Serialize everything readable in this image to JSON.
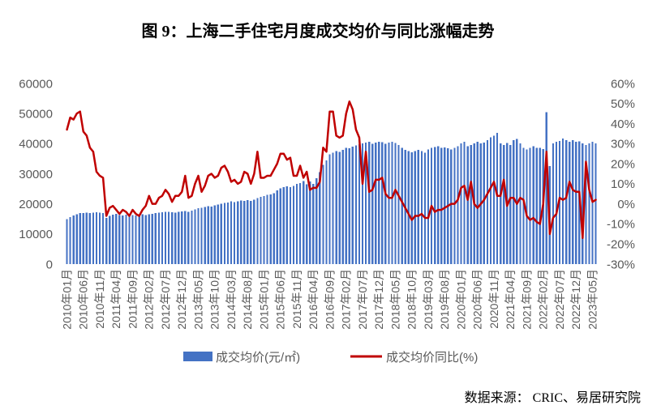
{
  "chart_data": {
    "type": "bar",
    "title": "图 9：上海二手住宅月度成交均价与同比涨幅走势",
    "categories": [
      "2010年01月",
      "2010年02月",
      "2010年03月",
      "2010年04月",
      "2010年05月",
      "2010年06月",
      "2010年07月",
      "2010年08月",
      "2010年09月",
      "2010年10月",
      "2010年11月",
      "2010年12月",
      "2011年01月",
      "2011年02月",
      "2011年03月",
      "2011年04月",
      "2011年05月",
      "2011年06月",
      "2011年07月",
      "2011年08月",
      "2011年09月",
      "2011年10月",
      "2011年11月",
      "2011年12月",
      "2012年01月",
      "2012年02月",
      "2012年03月",
      "2012年04月",
      "2012年05月",
      "2012年06月",
      "2012年07月",
      "2012年08月",
      "2012年09月",
      "2012年10月",
      "2012年11月",
      "2012年12月",
      "2013年01月",
      "2013年02月",
      "2013年03月",
      "2013年04月",
      "2013年05月",
      "2013年06月",
      "2013年07月",
      "2013年08月",
      "2013年09月",
      "2013年10月",
      "2013年11月",
      "2013年12月",
      "2014年01月",
      "2014年02月",
      "2014年03月",
      "2014年04月",
      "2014年05月",
      "2014年06月",
      "2014年07月",
      "2014年08月",
      "2014年09月",
      "2014年10月",
      "2014年11月",
      "2014年12月",
      "2015年01月",
      "2015年02月",
      "2015年03月",
      "2015年04月",
      "2015年05月",
      "2015年06月",
      "2015年07月",
      "2015年08月",
      "2015年09月",
      "2015年10月",
      "2015年11月",
      "2015年12月",
      "2016年01月",
      "2016年02月",
      "2016年03月",
      "2016年04月",
      "2016年05月",
      "2016年06月",
      "2016年07月",
      "2016年08月",
      "2016年09月",
      "2016年10月",
      "2016年11月",
      "2016年12月",
      "2017年01月",
      "2017年02月",
      "2017年03月",
      "2017年04月",
      "2017年05月",
      "2017年06月",
      "2017年07月",
      "2017年08月",
      "2017年09月",
      "2017年10月",
      "2017年11月",
      "2017年12月",
      "2018年01月",
      "2018年02月",
      "2018年03月",
      "2018年04月",
      "2018年05月",
      "2018年06月",
      "2018年07月",
      "2018年08月",
      "2018年09月",
      "2018年10月",
      "2018年11月",
      "2018年12月",
      "2019年01月",
      "2019年02月",
      "2019年03月",
      "2019年04月",
      "2019年05月",
      "2019年06月",
      "2019年07月",
      "2019年08月",
      "2019年09月",
      "2019年10月",
      "2019年11月",
      "2019年12月",
      "2020年01月",
      "2020年02月",
      "2020年03月",
      "2020年04月",
      "2020年05月",
      "2020年06月",
      "2020年07月",
      "2020年08月",
      "2020年09月",
      "2020年10月",
      "2020年11月",
      "2020年12月",
      "2021年01月",
      "2021年02月",
      "2021年03月",
      "2021年04月",
      "2021年05月",
      "2021年06月",
      "2021年07月",
      "2021年08月",
      "2021年09月",
      "2021年10月",
      "2021年11月",
      "2021年12月",
      "2022年01月",
      "2022年02月",
      "2022年03月",
      "2022年04月",
      "2022年05月",
      "2022年06月",
      "2022年07月",
      "2022年08月",
      "2022年09月",
      "2022年10月",
      "2022年11月",
      "2022年12月",
      "2023年01月",
      "2023年02月",
      "2023年03月",
      "2023年04月",
      "2023年05月",
      "2023年06月"
    ],
    "series": [
      {
        "name": "成交均价(元/㎡)",
        "type": "bar",
        "y_axis": "left",
        "color": "#4472C4",
        "values": [
          15000,
          15600,
          16200,
          16600,
          16900,
          17000,
          17100,
          17000,
          17100,
          17200,
          17100,
          17000,
          15300,
          16000,
          16400,
          16700,
          16300,
          16100,
          16400,
          16600,
          16300,
          16100,
          16400,
          16600,
          16300,
          16500,
          16700,
          16900,
          17100,
          17200,
          17300,
          17400,
          17200,
          17100,
          17300,
          17500,
          17600,
          17300,
          17800,
          18200,
          18500,
          18700,
          19000,
          19200,
          19100,
          19500,
          19800,
          20100,
          20300,
          20500,
          20800,
          20600,
          20900,
          21100,
          21000,
          21200,
          21000,
          21400,
          21900,
          22300,
          22600,
          23000,
          23200,
          23600,
          24500,
          25100,
          25600,
          25800,
          25600,
          25900,
          26600,
          26900,
          27600,
          26500,
          27400,
          26600,
          28500,
          30500,
          33000,
          34500,
          36500,
          37000,
          37500,
          37200,
          38000,
          38600,
          38500,
          39000,
          39400,
          39800,
          40100,
          40400,
          40600,
          40000,
          40400,
          40600,
          40500,
          40000,
          40300,
          40600,
          40200,
          39500,
          38600,
          38000,
          37500,
          37100,
          37600,
          37900,
          37600,
          37000,
          38100,
          38600,
          38900,
          39100,
          38600,
          38800,
          38500,
          38100,
          38600,
          39100,
          40100,
          40600,
          39200,
          39600,
          40100,
          40600,
          40100,
          40400,
          41100,
          42100,
          42600,
          43600,
          40100,
          39600,
          40200,
          39500,
          41100,
          41600,
          40100,
          38600,
          38100,
          38600,
          39100,
          38600,
          38600,
          38200,
          50400,
          32600,
          40100,
          40600,
          40900,
          41700,
          41100,
          40600,
          41100,
          40600,
          40700,
          40100,
          39600,
          40100,
          40600,
          40100
        ]
      },
      {
        "name": "成交均价同比(%)",
        "type": "line",
        "y_axis": "right",
        "color": "#C00000",
        "values": [
          37,
          43,
          42,
          45,
          46,
          36,
          34,
          28,
          26,
          16,
          14,
          13,
          -6,
          -2,
          -1,
          -3,
          -5,
          -3,
          -4,
          -6,
          -3,
          -5,
          -6,
          -3,
          -1,
          4,
          0,
          0,
          3,
          4,
          7,
          5,
          1,
          4,
          4,
          6,
          14,
          3,
          4,
          10,
          14,
          6,
          9,
          14,
          15,
          13,
          14,
          18,
          19,
          16,
          11,
          12,
          10,
          11,
          16,
          15,
          10,
          15,
          26,
          13,
          13,
          14,
          14,
          17,
          20,
          25,
          25,
          22,
          23,
          14,
          14,
          19,
          13,
          16,
          7,
          8,
          8,
          11,
          28,
          26,
          46,
          46,
          34,
          33,
          34,
          45,
          51,
          47,
          37,
          33,
          10,
          26,
          6,
          7,
          12,
          12,
          13,
          5,
          3,
          3,
          7,
          4,
          1,
          -2,
          -5,
          -8,
          -6,
          -6,
          -5,
          -7,
          -7,
          -1,
          -4,
          -3,
          -3,
          -2,
          -1,
          0,
          0,
          2,
          8,
          9,
          2,
          11,
          0,
          -2,
          0,
          2,
          5,
          8,
          11,
          4,
          4,
          12,
          -1,
          3,
          3,
          0,
          3,
          2,
          -6,
          -8,
          -7,
          -9,
          -10,
          0,
          26,
          -15,
          -7,
          -5,
          3,
          2,
          3,
          11,
          7,
          6,
          6,
          -17,
          21,
          7,
          1,
          2
        ]
      }
    ],
    "y_left": {
      "range": [
        0,
        60000
      ],
      "ticks": [
        0,
        10000,
        20000,
        30000,
        40000,
        50000,
        60000
      ]
    },
    "y_right": {
      "range": [
        -30,
        60
      ],
      "ticks": [
        "-30%",
        "-20%",
        "-10%",
        "0%",
        "10%",
        "20%",
        "30%",
        "40%",
        "50%",
        "60%"
      ]
    },
    "grid": false,
    "legend": "bottom"
  },
  "source": "数据来源： CRIC、易居研究院"
}
